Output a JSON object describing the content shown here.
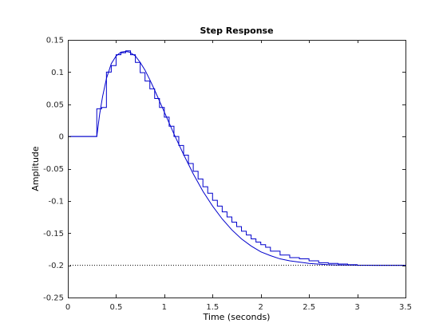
{
  "chart_data": {
    "type": "line",
    "title": "Step Response",
    "xlabel": "Time (seconds)",
    "ylabel": "Amplitude",
    "xlim": [
      0,
      3.5
    ],
    "ylim": [
      -0.25,
      0.15
    ],
    "x_ticks": [
      0,
      0.5,
      1,
      1.5,
      2,
      2.5,
      3,
      3.5
    ],
    "y_ticks": [
      -0.25,
      -0.2,
      -0.15,
      -0.1,
      -0.05,
      0,
      0.05,
      0.1,
      0.15
    ],
    "x_tick_labels": [
      "0",
      "0.5",
      "1",
      "1.5",
      "2",
      "2.5",
      "3",
      "3.5"
    ],
    "y_tick_labels": [
      "-0.25",
      "-0.2",
      "-0.15",
      "-0.1",
      "-0.05",
      "0",
      "0.05",
      "0.1",
      "0.15"
    ],
    "grid": false,
    "colors": {
      "continuous": "#0000cc",
      "discrete": "#0000cc",
      "reference": "#000000",
      "axes": "#262626"
    },
    "series": [
      {
        "style": "line",
        "x": [
          0,
          0.3,
          0.33,
          0.36,
          0.4,
          0.45,
          0.5,
          0.55,
          0.6,
          0.64,
          0.7,
          0.75,
          0.8,
          0.85,
          0.9,
          0.95,
          1.0,
          1.05,
          1.1,
          1.15,
          1.2,
          1.3,
          1.4,
          1.5,
          1.6,
          1.7,
          1.8,
          1.9,
          2.0,
          2.1,
          2.2,
          2.3,
          2.4,
          2.5,
          2.6,
          2.7,
          2.8,
          2.9,
          3.0,
          3.1,
          3.2,
          3.3,
          3.4,
          3.5
        ],
        "y": [
          0,
          0,
          0.035,
          0.062,
          0.09,
          0.113,
          0.125,
          0.131,
          0.132,
          0.131,
          0.125,
          0.115,
          0.103,
          0.088,
          0.072,
          0.055,
          0.038,
          0.021,
          0.004,
          -0.012,
          -0.028,
          -0.058,
          -0.085,
          -0.108,
          -0.128,
          -0.145,
          -0.159,
          -0.17,
          -0.179,
          -0.185,
          -0.19,
          -0.193,
          -0.195,
          -0.197,
          -0.1982,
          -0.199,
          -0.1995,
          -0.1997,
          -0.1998,
          -0.1999,
          -0.2,
          -0.2,
          -0.2,
          -0.2
        ]
      },
      {
        "style": "stairs",
        "x": [
          0,
          0.3,
          0.35,
          0.4,
          0.45,
          0.5,
          0.55,
          0.6,
          0.65,
          0.7,
          0.75,
          0.8,
          0.85,
          0.9,
          0.95,
          1.0,
          1.05,
          1.1,
          1.15,
          1.2,
          1.25,
          1.3,
          1.35,
          1.4,
          1.45,
          1.5,
          1.55,
          1.6,
          1.65,
          1.7,
          1.75,
          1.8,
          1.85,
          1.9,
          1.95,
          2.0,
          2.05,
          2.1,
          2.2,
          2.3,
          2.4,
          2.5,
          2.6,
          2.7,
          2.8,
          2.9,
          3.0,
          3.1,
          3.5
        ],
        "y": [
          0,
          0.043,
          0.045,
          0.1,
          0.11,
          0.127,
          0.13,
          0.133,
          0.127,
          0.115,
          0.099,
          0.086,
          0.074,
          0.059,
          0.045,
          0.03,
          0.016,
          0.0,
          -0.014,
          -0.029,
          -0.042,
          -0.054,
          -0.066,
          -0.078,
          -0.088,
          -0.099,
          -0.108,
          -0.117,
          -0.125,
          -0.133,
          -0.14,
          -0.147,
          -0.153,
          -0.159,
          -0.164,
          -0.168,
          -0.172,
          -0.178,
          -0.184,
          -0.188,
          -0.19,
          -0.193,
          -0.196,
          -0.197,
          -0.198,
          -0.199,
          -0.2,
          -0.2,
          -0.2
        ]
      },
      {
        "style": "dotted",
        "x": [
          0,
          3.5
        ],
        "y": [
          -0.2,
          -0.2
        ]
      }
    ]
  }
}
